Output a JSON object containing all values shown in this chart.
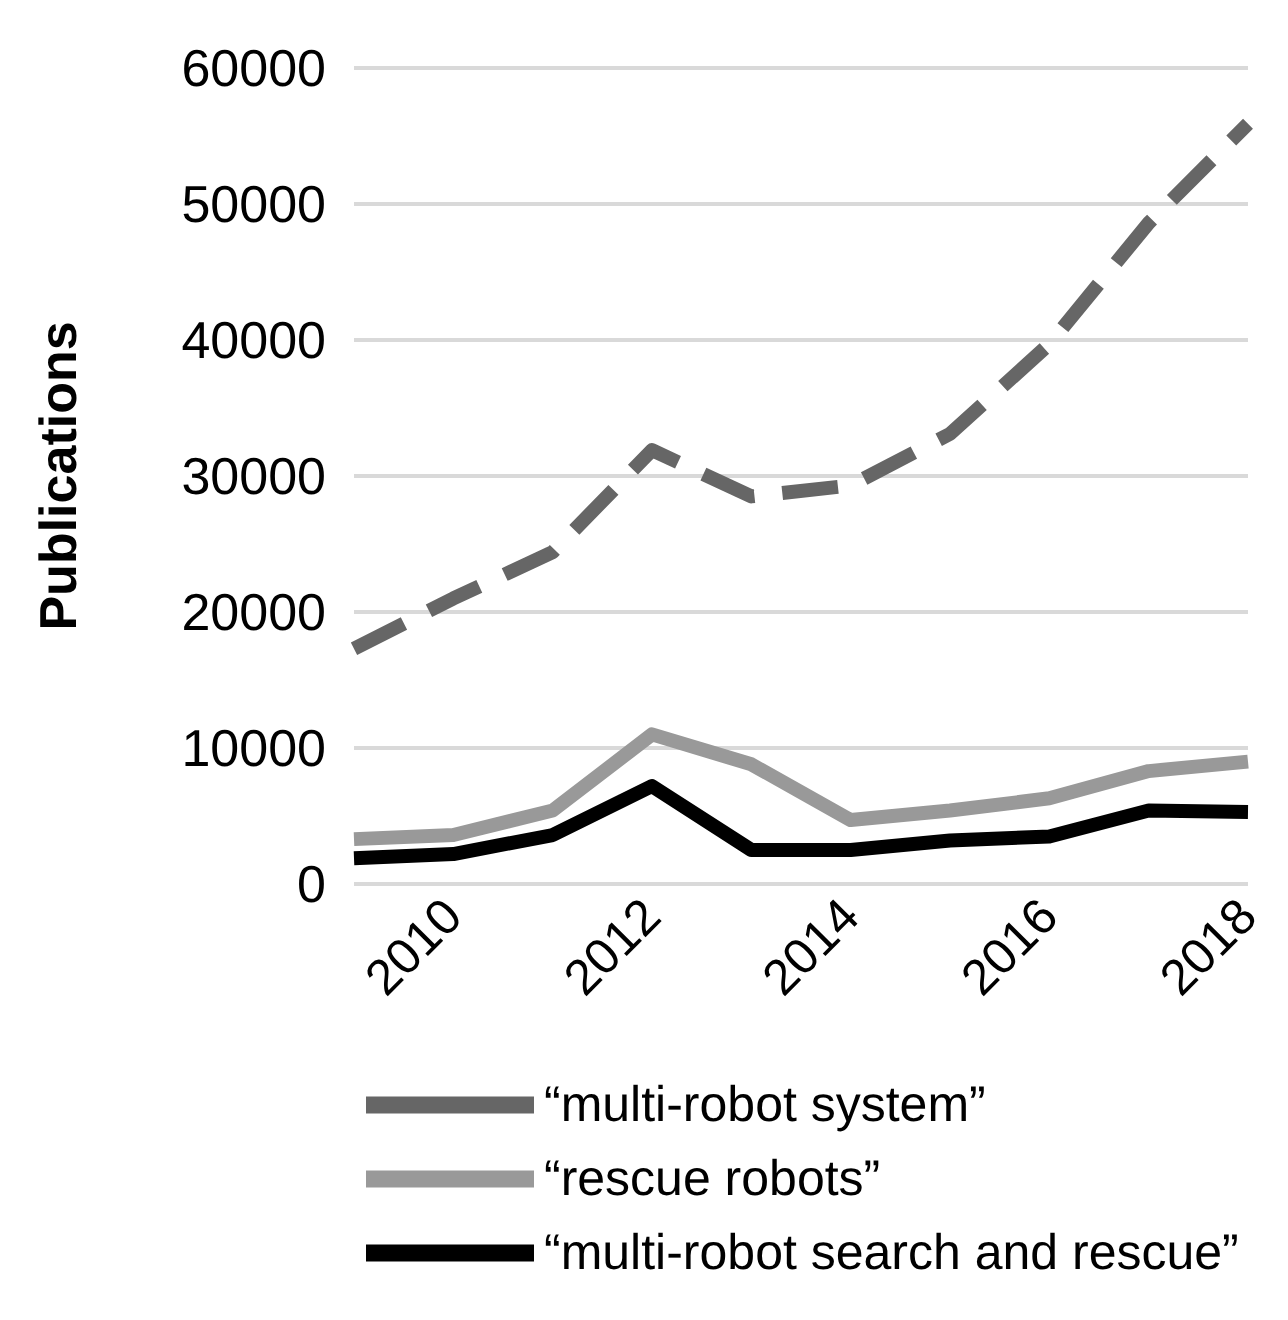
{
  "chart_data": {
    "type": "line",
    "ylabel": "Publications",
    "categories": [
      null,
      "2010",
      null,
      "2012",
      null,
      "2014",
      null,
      "2016",
      null,
      "2018"
    ],
    "series": [
      {
        "name": "“multi-robot system”",
        "color": "#666666",
        "line_style": "dashed",
        "values": [
          17300,
          21000,
          24400,
          31900,
          28500,
          29300,
          33100,
          39700,
          48600,
          55900
        ]
      },
      {
        "name": "“rescue robots”",
        "color": "#999999",
        "values": [
          3300,
          3600,
          5400,
          11000,
          8800,
          4700,
          5400,
          6300,
          8300,
          9000
        ]
      },
      {
        "name": "“multi-robot search and rescue”",
        "color": "#000000",
        "values": [
          1900,
          2200,
          3600,
          7200,
          2500,
          2500,
          3200,
          3500,
          5400,
          5300
        ]
      }
    ],
    "ylim": [
      0,
      60000
    ],
    "yticks": [
      0,
      10000,
      20000,
      30000,
      40000,
      50000,
      60000
    ],
    "grid": "y",
    "legend": "bottom",
    "marker": "none",
    "line_style": "solid"
  }
}
